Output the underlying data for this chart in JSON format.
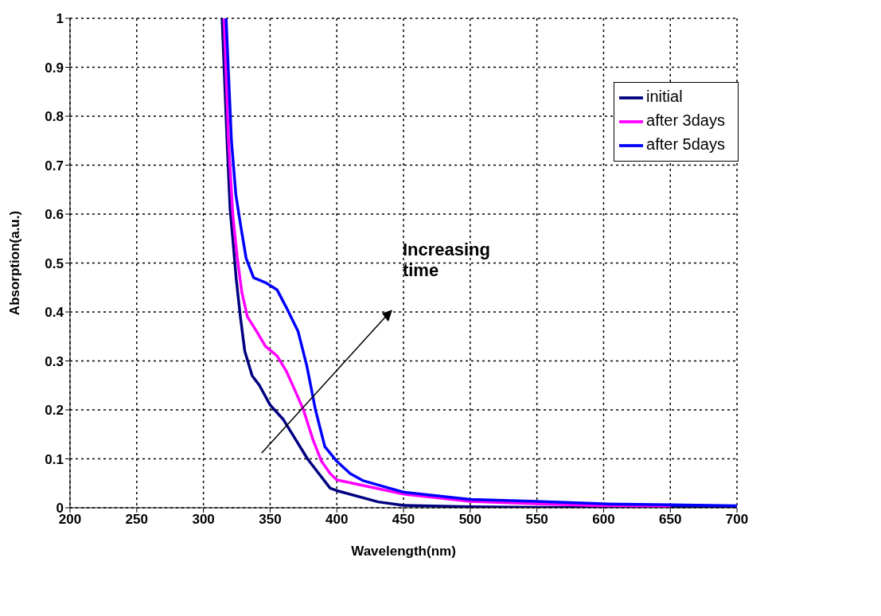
{
  "chart_data": {
    "type": "line",
    "xlabel": "Wavelength(nm)",
    "ylabel": "Absorption(a.u.)",
    "xlim": [
      200,
      700
    ],
    "xticks": [
      200,
      250,
      300,
      350,
      400,
      450,
      500,
      550,
      600,
      650,
      700
    ],
    "ylim": [
      0,
      1
    ],
    "yticks": [
      0,
      0.1,
      0.2,
      0.3,
      0.4,
      0.5,
      0.6,
      0.7,
      0.8,
      0.9,
      1
    ],
    "grid": true,
    "legend": "top right",
    "marker": "none",
    "line_style": "solid",
    "annotations": [
      "Increasing time"
    ],
    "series": [
      {
        "name": "initial",
        "color": "#000080",
        "x": [
          314,
          317.7,
          320,
          322,
          324.5,
          327.7,
          331,
          336.5,
          342,
          350,
          360,
          369,
          378,
          386.5,
          395,
          400,
          431,
          450,
          500,
          550,
          600,
          650,
          700
        ],
        "values": [
          1,
          0.75,
          0.61,
          0.55,
          0.47,
          0.39,
          0.32,
          0.27,
          0.25,
          0.21,
          0.18,
          0.14,
          0.1,
          0.07,
          0.04,
          0.035,
          0.012,
          0.005,
          0.002,
          0.001,
          0.001,
          0.001,
          0.001
        ]
      },
      {
        "name": "after 3days",
        "color": "#ff00ff",
        "x": [
          315.5,
          318.8,
          322,
          325.4,
          328.8,
          333,
          340,
          346.5,
          355.3,
          362,
          368.6,
          375,
          382,
          388.5,
          395,
          400,
          450,
          500,
          550,
          600,
          650
        ],
        "values": [
          1,
          0.75,
          0.6,
          0.51,
          0.44,
          0.39,
          0.36,
          0.33,
          0.31,
          0.28,
          0.24,
          0.2,
          0.14,
          0.095,
          0.07,
          0.057,
          0.028,
          0.013,
          0.008,
          0.004,
          0.003
        ]
      },
      {
        "name": "after 5days",
        "color": "#0000ff",
        "x": [
          317,
          321,
          324.3,
          327.7,
          332,
          337.6,
          346.5,
          355.3,
          362,
          371,
          377.5,
          384,
          391,
          400,
          410,
          420,
          450,
          500,
          550,
          600,
          650,
          700
        ],
        "values": [
          1,
          0.75,
          0.64,
          0.58,
          0.51,
          0.47,
          0.46,
          0.445,
          0.41,
          0.36,
          0.29,
          0.2,
          0.125,
          0.095,
          0.07,
          0.055,
          0.032,
          0.017,
          0.013,
          0.008,
          0.006,
          0.004
        ]
      }
    ]
  }
}
